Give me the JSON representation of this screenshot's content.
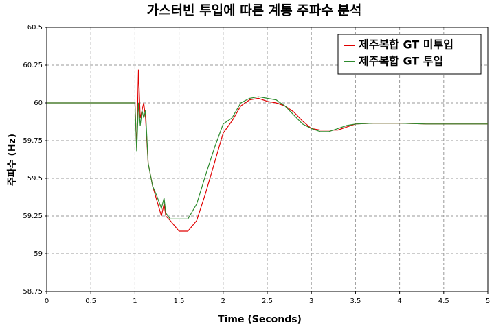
{
  "chart_data": {
    "type": "line",
    "title": "가스터빈 투입에 따른 계통 주파수 분석",
    "x_label": "Time (Seconds)",
    "y_label": "주파수 (Hz)",
    "x": [
      0,
      1.0,
      1.02,
      1.04,
      1.06,
      1.08,
      1.1,
      1.12,
      1.15,
      1.2,
      1.25,
      1.3,
      1.33,
      1.35,
      1.4,
      1.5,
      1.6,
      1.7,
      1.8,
      1.9,
      2.0,
      2.1,
      2.2,
      2.3,
      2.4,
      2.5,
      2.6,
      2.7,
      2.8,
      2.9,
      3.0,
      3.1,
      3.2,
      3.3,
      3.4,
      3.5,
      3.7,
      4.0,
      4.3,
      4.6,
      5.0
    ],
    "series": [
      {
        "name": "제주복합 GT 미투입",
        "color": "#e00000",
        "values": [
          60,
          60,
          59.7,
          60.22,
          59.9,
          59.95,
          60.0,
          59.9,
          59.6,
          59.45,
          59.35,
          59.25,
          59.33,
          59.25,
          59.22,
          59.15,
          59.15,
          59.22,
          59.4,
          59.6,
          59.8,
          59.88,
          59.98,
          60.02,
          60.03,
          60.01,
          60.0,
          59.98,
          59.94,
          59.88,
          59.83,
          59.82,
          59.82,
          59.82,
          59.84,
          59.86,
          59.865,
          59.865,
          59.86,
          59.86,
          59.86
        ]
      },
      {
        "name": "제주복합 GT 투입",
        "color": "#2e8b2e",
        "values": [
          60,
          60,
          59.68,
          60.0,
          59.85,
          59.95,
          59.9,
          59.95,
          59.6,
          59.45,
          59.38,
          59.3,
          59.37,
          59.27,
          59.23,
          59.23,
          59.23,
          59.33,
          59.52,
          59.7,
          59.86,
          59.9,
          60.0,
          60.03,
          60.04,
          60.03,
          60.02,
          59.98,
          59.92,
          59.86,
          59.83,
          59.81,
          59.81,
          59.83,
          59.85,
          59.86,
          59.865,
          59.865,
          59.86,
          59.86,
          59.86
        ]
      }
    ],
    "xlim": [
      0,
      5
    ],
    "xticks": [
      0,
      0.5,
      1,
      1.5,
      2,
      2.5,
      3,
      3.5,
      4,
      4.5,
      5
    ],
    "ylim": [
      58.75,
      60.5
    ],
    "yticks": [
      58.75,
      59,
      59.25,
      59.5,
      59.75,
      60,
      60.25,
      60.5
    ],
    "grid": true,
    "legend": "upper right"
  }
}
